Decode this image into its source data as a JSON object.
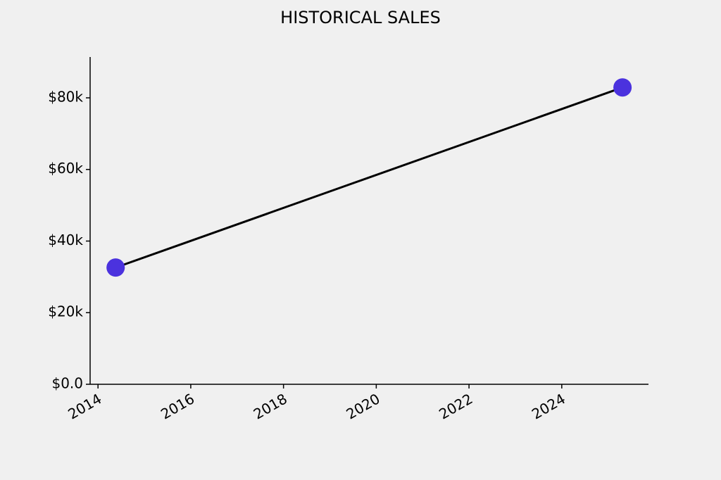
{
  "chart_data": {
    "type": "line",
    "title": "HISTORICAL SALES",
    "x": [
      2014.38,
      2025.31
    ],
    "series": [
      {
        "values": [
          32600,
          82900
        ],
        "color": "#000000",
        "marker_color": "#4b32de"
      }
    ],
    "xlim": [
      2013.83,
      2025.87
    ],
    "xticks": [
      2014,
      2016,
      2018,
      2020,
      2022,
      2024
    ],
    "ylim": [
      0,
      91400
    ],
    "yticks": [
      {
        "value": 0,
        "label": "$0.0"
      },
      {
        "value": 20000,
        "label": "$20k"
      },
      {
        "value": 40000,
        "label": "$40k"
      },
      {
        "value": 60000,
        "label": "$60k"
      },
      {
        "value": 80000,
        "label": "$80k"
      }
    ],
    "grid": false
  }
}
